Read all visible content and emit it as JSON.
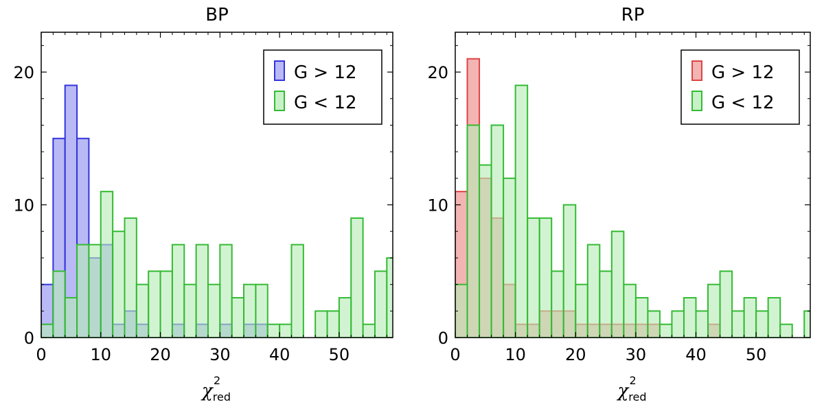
{
  "chart_data": [
    {
      "type": "histogram",
      "title": "BP",
      "xlabel": "χ",
      "xlabel_sup": "2",
      "xlabel_sub": "red",
      "xlim": [
        0,
        59
      ],
      "ylim": [
        0,
        23
      ],
      "xticks": [
        0,
        10,
        20,
        30,
        40,
        50
      ],
      "yticks": [
        0,
        10,
        20
      ],
      "bin_width": 2,
      "legend_position": "top-right",
      "series": [
        {
          "name": "G > 12",
          "face": "#b9b9f5",
          "edge": "#3333dd",
          "bins": [
            0,
            2,
            4,
            6,
            8,
            10,
            12,
            14,
            16,
            18,
            20,
            22,
            24,
            26,
            28,
            30,
            32,
            34,
            36,
            38
          ],
          "values": [
            4,
            15,
            19,
            15,
            6,
            7,
            1,
            2,
            1,
            0,
            0,
            1,
            0,
            1,
            0,
            1,
            0,
            1,
            1,
            0
          ]
        },
        {
          "name": "G < 12",
          "face": "#b6ecb6",
          "edge": "#33bb33",
          "bins": [
            0,
            2,
            4,
            6,
            8,
            10,
            12,
            14,
            16,
            18,
            20,
            22,
            24,
            26,
            28,
            30,
            32,
            34,
            36,
            38,
            40,
            42,
            44,
            46,
            48,
            50,
            52,
            54,
            56,
            58
          ],
          "values": [
            1,
            5,
            3,
            7,
            7,
            11,
            8,
            9,
            4,
            5,
            5,
            7,
            4,
            7,
            4,
            7,
            3,
            4,
            4,
            1,
            1,
            7,
            0,
            2,
            2,
            3,
            9,
            1,
            5,
            6
          ]
        }
      ]
    },
    {
      "type": "histogram",
      "title": "RP",
      "xlabel": "χ",
      "xlabel_sup": "2",
      "xlabel_sub": "red",
      "xlim": [
        0,
        59
      ],
      "ylim": [
        0,
        23
      ],
      "xticks": [
        0,
        10,
        20,
        30,
        40,
        50
      ],
      "yticks": [
        0,
        10,
        20
      ],
      "bin_width": 2,
      "legend_position": "top-right",
      "series": [
        {
          "name": "G > 12",
          "face": "#f3b4b4",
          "edge": "#dd4444",
          "bins": [
            0,
            2,
            4,
            6,
            8,
            10,
            12,
            14,
            16,
            18,
            20,
            22,
            24,
            26,
            28,
            30,
            32,
            34,
            36,
            38,
            40,
            42
          ],
          "values": [
            11,
            21,
            12,
            9,
            4,
            1,
            1,
            2,
            2,
            2,
            1,
            1,
            1,
            1,
            1,
            1,
            1,
            0,
            0,
            0,
            0,
            1
          ]
        },
        {
          "name": "G < 12",
          "face": "#b6ecb6",
          "edge": "#33bb33",
          "bins": [
            0,
            2,
            4,
            6,
            8,
            10,
            12,
            14,
            16,
            18,
            20,
            22,
            24,
            26,
            28,
            30,
            32,
            34,
            36,
            38,
            40,
            42,
            44,
            46,
            48,
            50,
            52,
            54,
            56,
            58
          ],
          "values": [
            4,
            16,
            13,
            16,
            12,
            19,
            9,
            9,
            5,
            10,
            4,
            7,
            5,
            8,
            4,
            3,
            2,
            1,
            2,
            3,
            2,
            4,
            5,
            2,
            3,
            2,
            3,
            1,
            0,
            2
          ]
        }
      ]
    }
  ]
}
